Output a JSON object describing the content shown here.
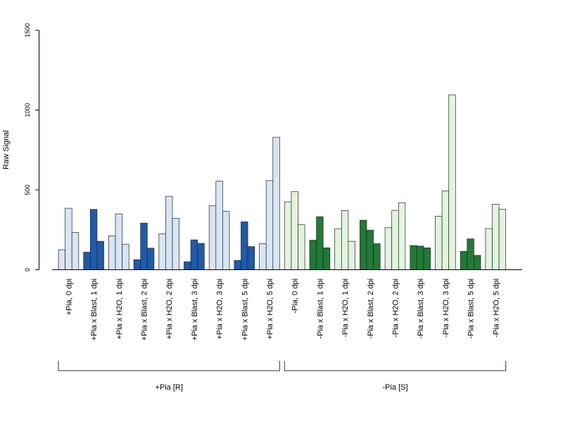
{
  "chart_data": {
    "type": "bar",
    "ylabel": "Raw Signal",
    "ylim": [
      0,
      1500
    ],
    "yticks": [
      0,
      500,
      1000,
      1500
    ],
    "grid": false,
    "categories": [
      "+Pia, 0 dpi",
      "+Pia x Blast, 1 dpi",
      "+Pia x H2O, 1 dpi",
      "+Pia x Blast, 2 dpi",
      "+Pia x H2O, 2 dpi",
      "+Pia x Blast, 3 dpi",
      "+Pia x H2O, 3 dpi",
      "+Pia x Blast, 5 dpi",
      "+Pia x H2O, 5 dpi",
      "-Pia, 0 dpi",
      "-Pia x Blast, 1 dpi",
      "-Pia x H2O, 1 dpi",
      "-Pia x Blast, 2 dpi",
      "-Pia x H2O, 2 dpi",
      "-Pia x Blast, 3 dpi",
      "-Pia x H2O, 3 dpi",
      "-Pia x Blast, 5 dpi",
      "-Pia x H2O, 5 dpi"
    ],
    "replicates": [
      [
        125,
        385,
        233
      ],
      [
        110,
        378,
        178
      ],
      [
        212,
        350,
        160
      ],
      [
        63,
        292,
        135
      ],
      [
        225,
        460,
        322
      ],
      [
        50,
        187,
        165
      ],
      [
        400,
        555,
        365
      ],
      [
        58,
        300,
        145
      ],
      [
        163,
        558,
        830
      ],
      [
        425,
        490,
        283
      ],
      [
        185,
        332,
        137
      ],
      [
        257,
        370,
        178
      ],
      [
        310,
        248,
        163
      ],
      [
        263,
        372,
        420
      ],
      [
        152,
        148,
        137
      ],
      [
        335,
        493,
        1095
      ],
      [
        115,
        193,
        90
      ],
      [
        258,
        410,
        378
      ]
    ],
    "bar_colors": [
      "#d8e5f5",
      "#1f5ba8",
      "#d8e5f5",
      "#1f5ba8",
      "#d8e5f5",
      "#1f5ba8",
      "#d8e5f5",
      "#1f5ba8",
      "#d8e5f5",
      "#e3f4de",
      "#217a35",
      "#e3f4de",
      "#217a35",
      "#e3f4de",
      "#217a35",
      "#e3f4de",
      "#217a35",
      "#e3f4de"
    ],
    "groups": [
      {
        "label": "+Pia [R]",
        "from": 0,
        "to": 8
      },
      {
        "label": "-Pia [S]",
        "from": 9,
        "to": 17
      }
    ]
  }
}
